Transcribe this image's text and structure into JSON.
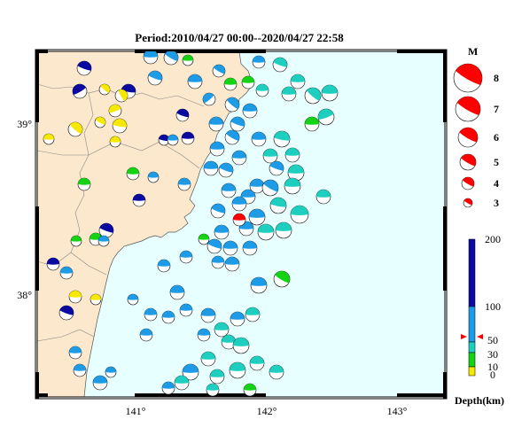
{
  "title": "Period:2010/04/27 00:00--2020/04/27 22:58",
  "axes": {
    "x_ticks": [
      "141°",
      "142°",
      "143°"
    ],
    "y_ticks": [
      "39°",
      "38°"
    ]
  },
  "magnitude_legend": {
    "header": "M",
    "items": [
      "8",
      "7",
      "6",
      "5",
      "4",
      "3"
    ]
  },
  "depth_legend": {
    "title": "Depth(km)",
    "ticks": [
      "200",
      "100",
      "50",
      "30",
      "10",
      "0"
    ]
  },
  "colors": {
    "land": "#fce8cc",
    "sea": "#e8ffff",
    "depth_0_10": "#f6e800",
    "depth_10_30": "#14d214",
    "depth_30_60": "#1ecfc0",
    "depth_60_100": "#1e9be6",
    "depth_100_200": "#0a0aa0",
    "highlight": "#ff0000"
  }
}
